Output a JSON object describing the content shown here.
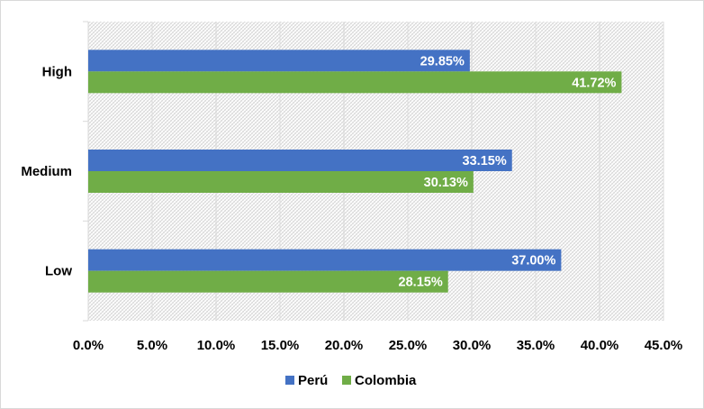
{
  "chart_data": {
    "type": "bar",
    "orientation": "horizontal",
    "categories": [
      "High",
      "Medium",
      "Low"
    ],
    "series": [
      {
        "name": "Perú",
        "color": "#4472c4",
        "values": [
          29.85,
          33.15,
          37.0
        ]
      },
      {
        "name": "Colombia",
        "color": "#70ad47",
        "values": [
          41.72,
          30.13,
          28.15
        ]
      }
    ],
    "xlim": [
      0,
      45
    ],
    "xticks": [
      0,
      5,
      10,
      15,
      20,
      25,
      30,
      35,
      40,
      45
    ],
    "tick_labels": [
      "0.0%",
      "5.0%",
      "10.0%",
      "15.0%",
      "20.0%",
      "25.0%",
      "30.0%",
      "35.0%",
      "40.0%",
      "45.0%"
    ],
    "data_labels": [
      [
        "29.85%",
        "33.15%",
        "37.00%"
      ],
      [
        "41.72%",
        "30.13%",
        "28.15%"
      ]
    ],
    "grid": true,
    "legend_position": "bottom",
    "plot_background": "hatched"
  }
}
